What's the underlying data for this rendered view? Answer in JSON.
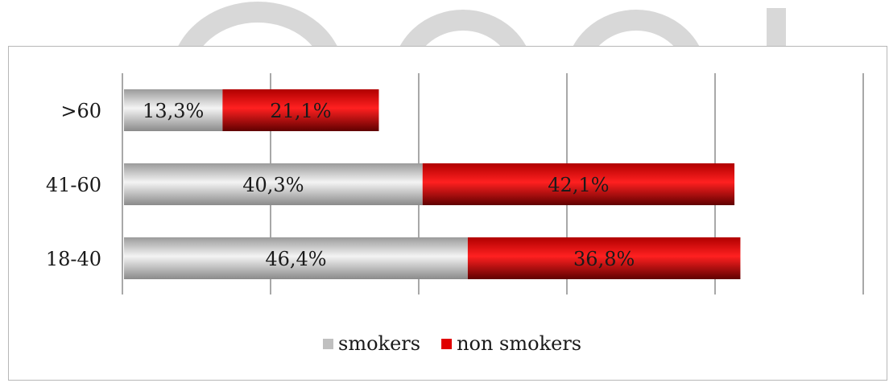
{
  "chart_data": {
    "type": "bar",
    "orientation": "horizontal",
    "stacked": true,
    "categories": [
      ">60",
      "41-60",
      "18-40"
    ],
    "series": [
      {
        "name": "smokers",
        "values": [
          13.3,
          40.3,
          46.4
        ],
        "labels": [
          "13,3%",
          "40,3%",
          "46,4%"
        ],
        "color": "#c0c0c0"
      },
      {
        "name": "non smokers",
        "values": [
          21.1,
          42.1,
          36.8
        ],
        "labels": [
          "21,1%",
          "42,1%",
          "36,8%"
        ],
        "color": "#e00000"
      }
    ],
    "title": "",
    "xlabel": "",
    "ylabel": "",
    "xlim": [
      0,
      100
    ],
    "grid": true,
    "legend": "bottom"
  }
}
